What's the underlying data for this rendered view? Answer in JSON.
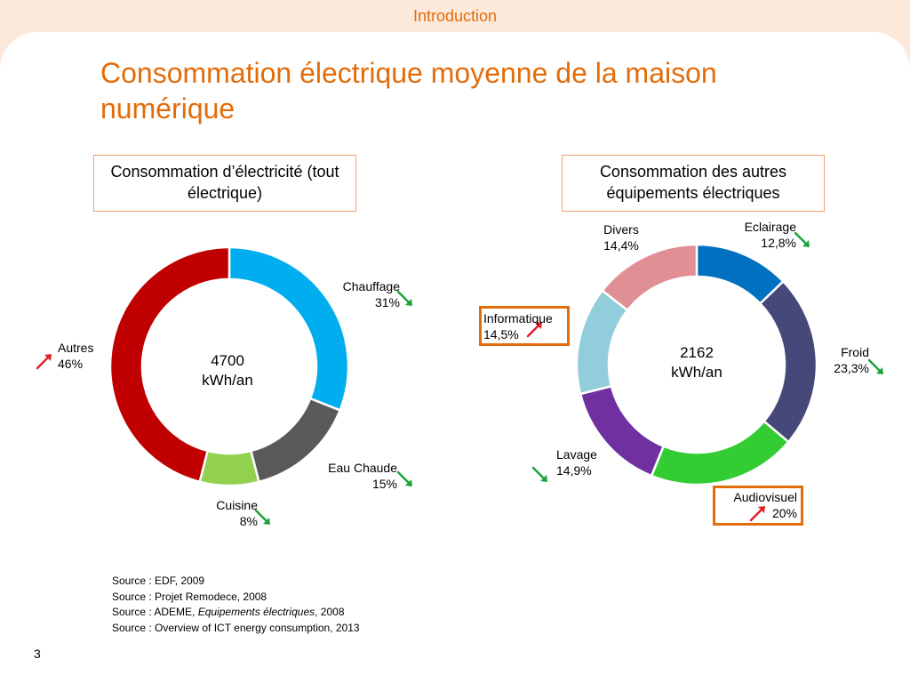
{
  "header": {
    "section": "Introduction"
  },
  "slide": {
    "title": "Consommation électrique moyenne de la maison numérique",
    "page_number": "3"
  },
  "colors": {
    "accent": "#e36c0a",
    "trend_up": "#e0202a",
    "trend_down": "#1aa33a"
  },
  "chart_data": [
    {
      "type": "donut",
      "title": "Consommation d’électricité (tout électrique)",
      "center_value": "4700",
      "center_unit": "kWh/an",
      "categories": [
        "Chauffage",
        "Eau Chaude",
        "Cuisine",
        "Autres"
      ],
      "values": [
        31,
        15,
        8,
        46
      ],
      "value_labels": [
        "31%",
        "15%",
        "8%",
        "46%"
      ],
      "colors": [
        "#00adef",
        "#595959",
        "#92d050",
        "#c00000"
      ],
      "trends": [
        "down",
        "down",
        "down",
        "up"
      ]
    },
    {
      "type": "donut",
      "title": "Consommation des autres équipements électriques",
      "center_value": "2162",
      "center_unit": "kWh/an",
      "categories": [
        "Eclairage",
        "Froid",
        "Audiovisuel",
        "Lavage",
        "Informatique",
        "Divers"
      ],
      "values": [
        12.8,
        23.3,
        20,
        14.9,
        14.5,
        14.4
      ],
      "value_labels": [
        "12,8%",
        "23,3%",
        "20%",
        "14,9%",
        "14,5%",
        "14,4%"
      ],
      "colors": [
        "#0070c0",
        "#464879",
        "#33cc33",
        "#7030a0",
        "#92cddc",
        "#e09094"
      ],
      "trends": [
        "down",
        "down",
        "up",
        "down",
        "up",
        ""
      ]
    }
  ],
  "sources": [
    {
      "prefix": "Source : EDF, 2009",
      "italic": "",
      "suffix": ""
    },
    {
      "prefix": "Source : Projet Remodece, 2008",
      "italic": "",
      "suffix": ""
    },
    {
      "prefix": "Source : ADEME, ",
      "italic": "Equipements électriques",
      "suffix": ", 2008"
    },
    {
      "prefix": "Source : Overview of ICT energy consumption, 2013",
      "italic": "",
      "suffix": ""
    }
  ]
}
